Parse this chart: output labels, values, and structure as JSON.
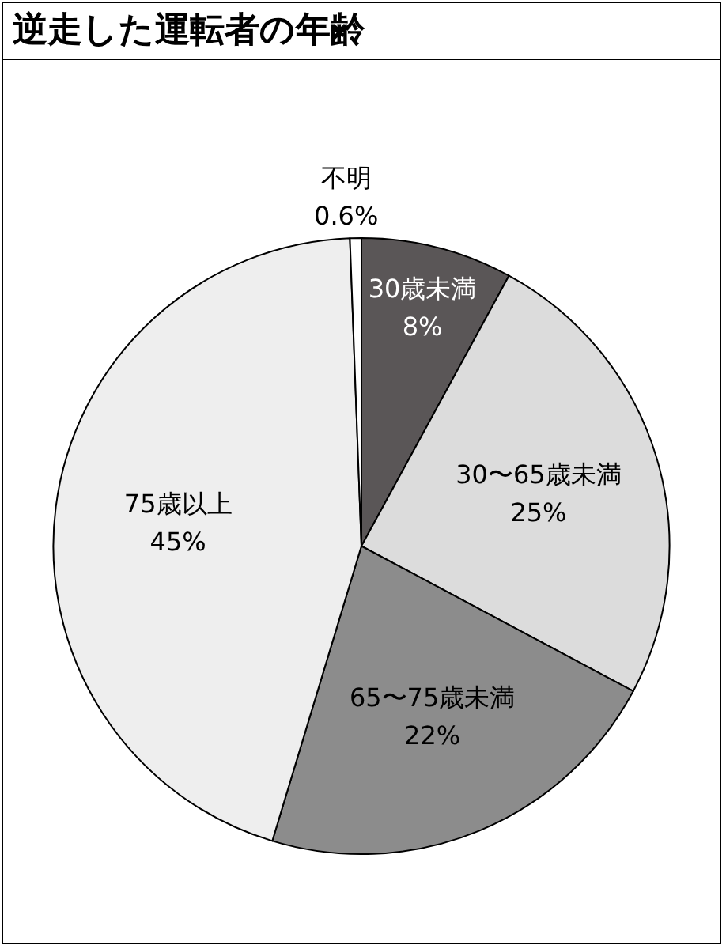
{
  "chart_data": {
    "type": "pie",
    "title": "逆走した運転者の年齢",
    "categories": [
      "30歳未満",
      "30〜65歳未満",
      "65〜75歳未満",
      "75歳以上",
      "不明"
    ],
    "values": [
      8,
      25,
      22,
      45,
      0.6
    ],
    "value_labels": [
      "8%",
      "25%",
      "22%",
      "45%",
      "0.6%"
    ],
    "colors": [
      "#5a5657",
      "#dcdcdc",
      "#8c8c8c",
      "#eeeeee",
      "#ffffff"
    ],
    "legend": false
  }
}
